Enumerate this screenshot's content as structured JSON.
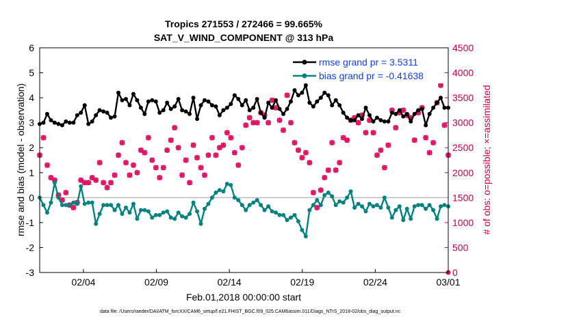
{
  "chart_data": {
    "type": "line",
    "title": "Tropics 271553 / 272466 = 99.665%",
    "subtitle": "SAT_V_WIND_COMPONENT @ 313 hPa",
    "xlabel": "Feb.01,2018 00:00:00 start",
    "ylabel": "rmse and bias (model - observation)",
    "ylabel_right": "# of obs: o=possible; ×=assimilated",
    "xlim": [
      0,
      28
    ],
    "ylim": [
      -3,
      6
    ],
    "ylim_right": [
      0,
      4500
    ],
    "x_ticks": [
      {
        "x": 3,
        "label": "02/04"
      },
      {
        "x": 8,
        "label": "02/09"
      },
      {
        "x": 13,
        "label": "02/14"
      },
      {
        "x": 18,
        "label": "02/19"
      },
      {
        "x": 23,
        "label": "02/24"
      },
      {
        "x": 28,
        "label": "03/01"
      }
    ],
    "y_ticks": [
      {
        "v": -3,
        "label": "-3"
      },
      {
        "v": -2,
        "label": "-2"
      },
      {
        "v": -1,
        "label": "-1"
      },
      {
        "v": 0,
        "label": "0"
      },
      {
        "v": 1,
        "label": "1"
      },
      {
        "v": 2,
        "label": "2"
      },
      {
        "v": 3,
        "label": "3"
      },
      {
        "v": 4,
        "label": "4"
      },
      {
        "v": 5,
        "label": "5"
      },
      {
        "v": 6,
        "label": "6"
      }
    ],
    "y2_ticks": [
      {
        "v": 0,
        "label": "0"
      },
      {
        "v": 500,
        "label": "500"
      },
      {
        "v": 1000,
        "label": "1000"
      },
      {
        "v": 1500,
        "label": "1500"
      },
      {
        "v": 2000,
        "label": "2000"
      },
      {
        "v": 2500,
        "label": "2500"
      },
      {
        "v": 3000,
        "label": "3000"
      },
      {
        "v": 3500,
        "label": "3500"
      },
      {
        "v": 4000,
        "label": "4000"
      },
      {
        "v": 4500,
        "label": "4500"
      }
    ],
    "series": [
      {
        "name": "rmse grand pr = 3.5311",
        "color": "#000000",
        "axis": "left",
        "values": [
          2.95,
          3.0,
          3.35,
          3.1,
          3.0,
          2.95,
          2.9,
          3.05,
          3.0,
          3.0,
          3.3,
          3.4,
          3.7,
          2.95,
          3.05,
          3.3,
          3.5,
          3.45,
          3.4,
          3.2,
          3.25,
          4.2,
          3.9,
          3.95,
          3.7,
          4.15,
          3.9,
          3.6,
          3.35,
          3.85,
          3.9,
          3.85,
          3.4,
          3.5,
          3.8,
          3.55,
          3.65,
          3.95,
          3.5,
          3.45,
          3.35,
          4.0,
          3.15,
          3.7,
          3.9,
          3.85,
          3.7,
          3.65,
          3.3,
          3.5,
          3.6,
          3.75,
          4.1,
          3.95,
          3.7,
          3.9,
          3.5,
          3.6,
          3.95,
          3.4,
          3.2,
          3.8,
          3.6,
          3.9,
          3.55,
          3.35,
          3.55,
          3.85,
          4.3,
          4.1,
          4.2,
          4.5,
          3.8,
          3.65,
          3.85,
          4.0,
          4.2,
          4.1,
          3.7,
          3.9,
          3.7,
          3.4,
          3.2,
          3.1,
          3.1,
          3.3,
          3.15,
          3.6,
          3.3,
          3.05,
          3.2,
          3.1,
          3.05,
          3.05,
          3.4,
          3.35,
          3.5,
          3.25,
          3.35,
          3.05,
          3.35,
          3.5,
          3.55,
          2.9,
          3.35,
          3.6,
          3.8,
          4.0,
          3.6,
          3.6
        ]
      },
      {
        "name": "bias grand pr = -0.41638",
        "color": "#00827f",
        "axis": "left",
        "values": [
          0.0,
          -0.3,
          -0.6,
          -0.2,
          0.6,
          0.0,
          -0.3,
          -0.3,
          -0.3,
          -0.2,
          -0.25,
          0.45,
          -0.25,
          -0.2,
          -0.2,
          -1.05,
          -0.65,
          -0.3,
          -0.3,
          -0.3,
          -0.5,
          -0.3,
          -0.65,
          -0.4,
          -0.6,
          -0.25,
          -0.85,
          -0.5,
          -0.5,
          -0.55,
          -0.8,
          -0.7,
          -0.7,
          -0.6,
          -0.55,
          -0.8,
          -0.85,
          -0.6,
          -0.75,
          -0.8,
          -0.65,
          -0.2,
          -0.55,
          -1.05,
          -0.45,
          -0.25,
          0.0,
          0.2,
          0.3,
          0.25,
          0.55,
          0.5,
          0.0,
          -0.1,
          -0.3,
          -0.5,
          -0.3,
          -0.2,
          -0.1,
          -0.3,
          -0.5,
          -0.35,
          -0.55,
          -0.6,
          -0.7,
          -0.7,
          -0.9,
          -0.8,
          -0.7,
          -0.95,
          -1.3,
          -1.55,
          -0.5,
          -0.3,
          -0.1,
          -0.3,
          0.1,
          0.2,
          0.05,
          -0.3,
          -0.15,
          -0.2,
          0.0,
          0.25,
          -0.4,
          -0.25,
          -0.35,
          -0.55,
          -0.25,
          -0.35,
          -0.3,
          -0.4,
          0.0,
          -0.4,
          -0.8,
          -0.5,
          -0.35,
          -0.9,
          -0.45,
          -0.85,
          -0.35,
          -0.3,
          -0.3,
          -0.45,
          -0.3,
          -0.5,
          -0.85,
          -0.35,
          -0.3,
          -0.35
        ]
      },
      {
        "name": "# of obs possible (o)",
        "color": "#e01060",
        "axis": "right",
        "marker": "o",
        "values": [
          2350,
          2700,
          2150,
          1900,
          1850,
          1550,
          1450,
          1600,
          1350,
          1300,
          1400,
          1850,
          1800,
          1800,
          1900,
          1850,
          2200,
          1800,
          1700,
          1800,
          1950,
          2350,
          2600,
          2200,
          1950,
          2150,
          2000,
          2450,
          2400,
          2700,
          2250,
          2100,
          1900,
          2100,
          2450,
          2650,
          2900,
          2500,
          1950,
          2250,
          1800,
          2550,
          2300,
          2100,
          1950,
          2350,
          2700,
          2350,
          2500,
          2550,
          2800,
          2700,
          2400,
          2150,
          2500,
          2950,
          3100,
          3000,
          3000,
          3200,
          3150,
          3000,
          3450,
          3300,
          3050,
          2850,
          3550,
          3000,
          2600,
          2450,
          2300,
          2400,
          2200,
          1600,
          1300,
          1650,
          1900,
          2050,
          2600,
          2050,
          2200,
          2700,
          2650,
          3050,
          3100,
          3000,
          3150,
          2800,
          3050,
          2800,
          2350,
          2450,
          2100,
          2550,
          3250,
          2900,
          3200,
          3250,
          3150,
          3100,
          2650,
          3200,
          3300,
          2700,
          2400,
          2600,
          3400,
          3750,
          2950,
          2350
        ]
      },
      {
        "name": "# of obs assimilated (×)",
        "color": "#e01060",
        "axis": "right",
        "marker": "x",
        "values": [
          2350,
          2700,
          2150,
          1900,
          1850,
          1550,
          1450,
          1600,
          1350,
          1300,
          1400,
          1850,
          1800,
          1800,
          1900,
          1850,
          2200,
          1800,
          1700,
          1800,
          1950,
          2350,
          2600,
          2200,
          1950,
          2150,
          2000,
          2450,
          2400,
          2700,
          2250,
          2100,
          1900,
          2100,
          2450,
          2650,
          2900,
          2500,
          1950,
          2250,
          1800,
          2550,
          2300,
          2100,
          1950,
          2350,
          2700,
          2350,
          2500,
          2550,
          2800,
          2700,
          2400,
          2150,
          2500,
          2950,
          3100,
          3000,
          3000,
          3200,
          3150,
          3000,
          3450,
          3300,
          3050,
          2850,
          3550,
          3000,
          2600,
          2450,
          2300,
          2400,
          2200,
          1600,
          1300,
          1650,
          1900,
          2050,
          2600,
          2050,
          2200,
          2700,
          2650,
          3050,
          3100,
          3000,
          3150,
          2800,
          3050,
          2800,
          2350,
          2450,
          2100,
          2550,
          3250,
          2900,
          3200,
          3250,
          3150,
          3100,
          2650,
          3200,
          3300,
          2700,
          2400,
          2600,
          3400,
          3750,
          2950,
          2350
        ]
      }
    ],
    "legend": "top-right",
    "footnote": "data file: /Users/raeder/DAI/ATM_forcXX/CAM6_setup/f.e21.FHIST_BGC.f09_025.CAM6assim.011/Diags_NTrS_2018-02/obs_diag_output.nc"
  }
}
